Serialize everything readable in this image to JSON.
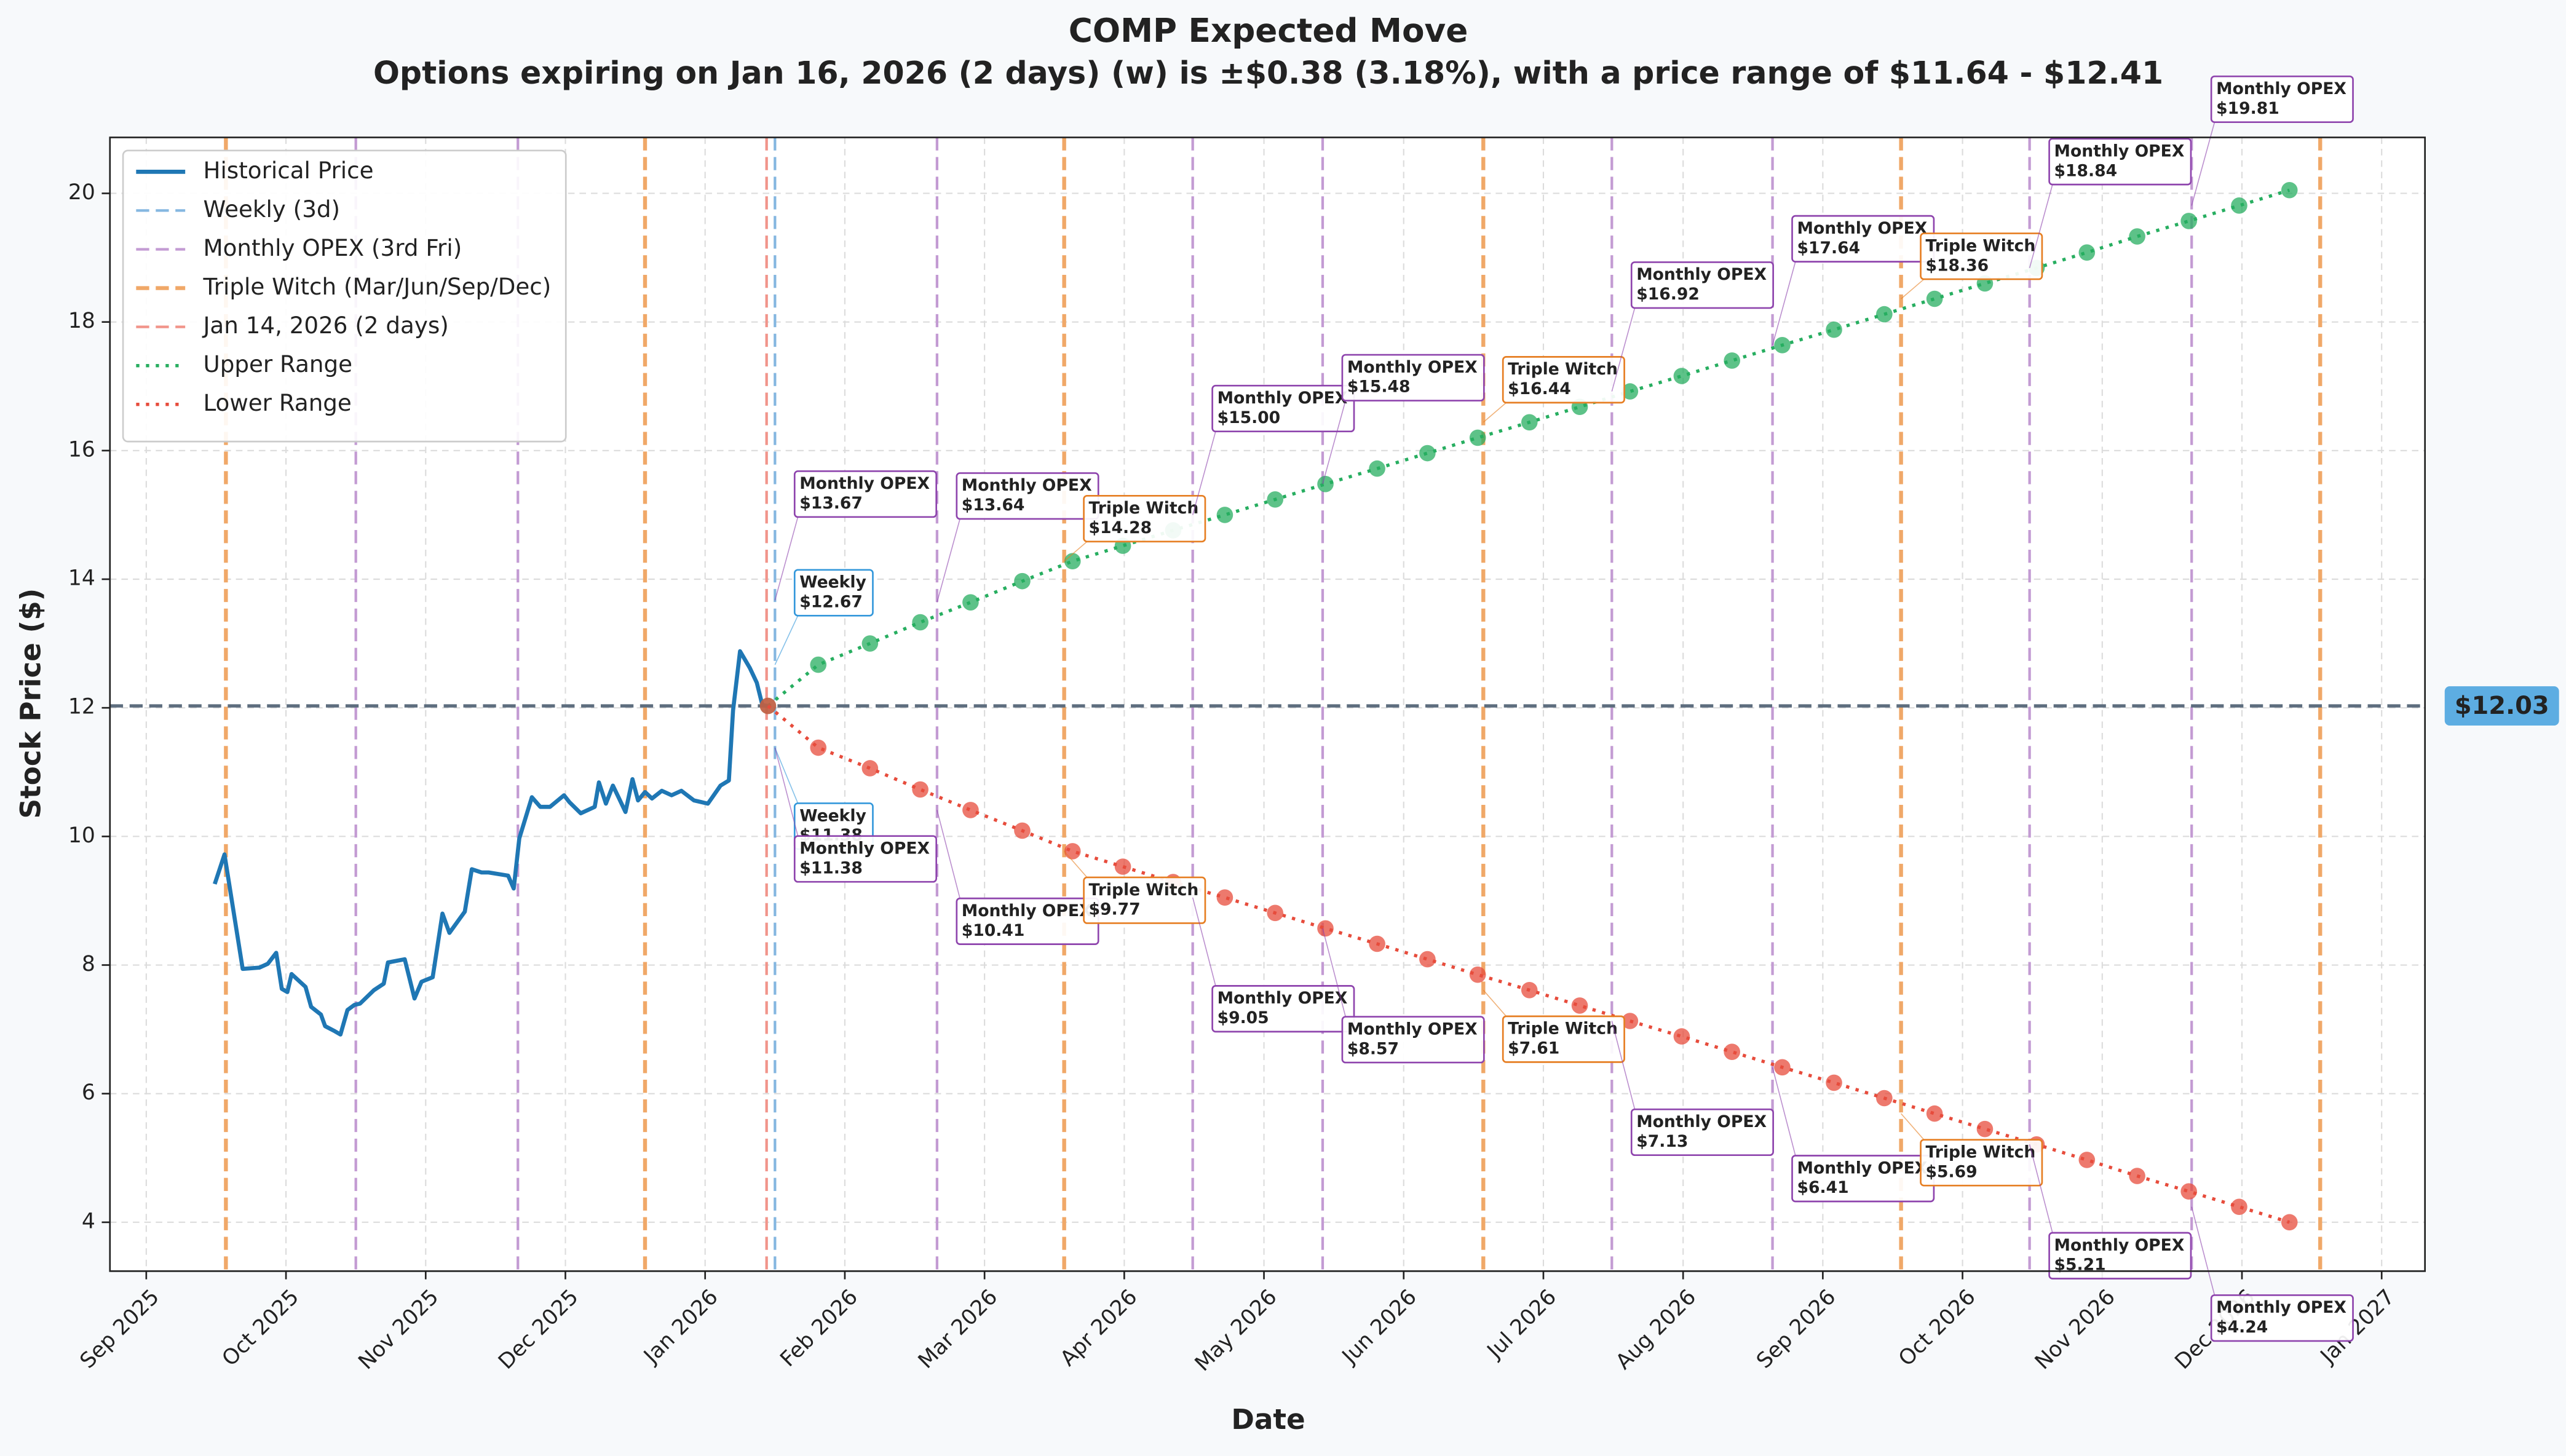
{
  "chart_data": {
    "type": "line",
    "title": "COMP Expected Move",
    "subtitle": "Options expiring on Jan 16, 2026 (2 days) (w) is ±$0.38 (3.18%), with a price range of $11.64 - $12.41",
    "x_label": "Date",
    "y_label": "Stock Price ($)",
    "xlim": [
      -0.26,
      16.31
    ],
    "xticks": [
      {
        "value": 0,
        "label": "Sep 2025"
      },
      {
        "value": 1,
        "label": "Oct 2025"
      },
      {
        "value": 2,
        "label": "Nov 2025"
      },
      {
        "value": 3,
        "label": "Dec 2025"
      },
      {
        "value": 4,
        "label": "Jan 2026"
      },
      {
        "value": 5,
        "label": "Feb 2026"
      },
      {
        "value": 6,
        "label": "Mar 2026"
      },
      {
        "value": 7,
        "label": "Apr 2026"
      },
      {
        "value": 8,
        "label": "May 2026"
      },
      {
        "value": 9,
        "label": "Jun 2026"
      },
      {
        "value": 10,
        "label": "Jul 2026"
      },
      {
        "value": 11,
        "label": "Aug 2026"
      },
      {
        "value": 12,
        "label": "Sep 2026"
      },
      {
        "value": 13,
        "label": "Oct 2026"
      },
      {
        "value": 14,
        "label": "Nov 2026"
      },
      {
        "value": 15,
        "label": "Dec 2026"
      },
      {
        "value": 16,
        "label": "Jan 2027"
      }
    ],
    "ylim": [
      3.24,
      20.87
    ],
    "yticks": [
      4,
      6,
      8,
      10,
      12,
      14,
      16,
      18,
      20
    ],
    "grid": true,
    "legend": "upper left",
    "series": [
      {
        "name": "Historical Price",
        "color": "#1f77b4",
        "style": "solid",
        "x": [
          0.49,
          0.56,
          0.69,
          0.81,
          0.87,
          0.93,
          0.97,
          1.01,
          1.04,
          1.14,
          1.18,
          1.25,
          1.28,
          1.35,
          1.39,
          1.44,
          1.49,
          1.53,
          1.63,
          1.7,
          1.73,
          1.85,
          1.92,
          1.97,
          2.05,
          2.12,
          2.17,
          2.28,
          2.33,
          2.4,
          2.45,
          2.59,
          2.63,
          2.67,
          2.76,
          2.82,
          2.89,
          2.99,
          3.03,
          3.11,
          3.21,
          3.24,
          3.29,
          3.34,
          3.38,
          3.43,
          3.48,
          3.52,
          3.57,
          3.62,
          3.69,
          3.76,
          3.83,
          3.92,
          4.02,
          4.11,
          4.17,
          4.2,
          4.25,
          4.32,
          4.37,
          4.41,
          4.45
        ],
        "values": [
          9.26,
          9.72,
          7.94,
          7.96,
          8.02,
          8.19,
          7.63,
          7.58,
          7.86,
          7.66,
          7.35,
          7.23,
          7.05,
          6.97,
          6.92,
          7.3,
          7.38,
          7.4,
          7.61,
          7.71,
          8.04,
          8.09,
          7.48,
          7.74,
          7.81,
          8.8,
          8.5,
          8.83,
          9.49,
          9.44,
          9.44,
          9.39,
          9.19,
          9.97,
          10.61,
          10.46,
          10.46,
          10.64,
          10.53,
          10.36,
          10.46,
          10.84,
          10.51,
          10.79,
          10.61,
          10.38,
          10.89,
          10.56,
          10.69,
          10.59,
          10.71,
          10.64,
          10.71,
          10.56,
          10.51,
          10.79,
          10.87,
          11.96,
          12.88,
          12.62,
          12.39,
          12.04,
          12.03
        ]
      },
      {
        "name": "Weekly (3d)",
        "color": "#85b7e0",
        "style": "vline",
        "x": [
          4.5
        ]
      },
      {
        "name": "Monthly OPEX (3rd Fri)",
        "color": "#c39bd3",
        "style": "vline",
        "x": [
          1.5,
          2.66,
          5.66,
          7.49,
          8.42,
          10.49,
          11.64,
          13.48,
          14.64
        ]
      },
      {
        "name": "Triple Witch (Mar/Jun/Sep/Dec)",
        "color": "#f0a868",
        "style": "vline-bold",
        "x": [
          0.57,
          3.57,
          6.57,
          9.57,
          12.56,
          15.56
        ]
      },
      {
        "name": "Jan 14, 2026 (2 days)",
        "color": "#f1948a",
        "style": "vline",
        "x": [
          4.44
        ]
      },
      {
        "name": "Upper Range",
        "color": "#27ae60",
        "style": "dotted",
        "x": [
          4.45,
          4.81,
          5.18,
          5.54,
          5.9,
          6.27,
          6.63,
          6.99,
          7.35,
          7.72,
          8.08,
          8.44,
          8.81,
          9.17,
          9.53,
          9.9,
          10.26,
          10.62,
          10.99,
          11.35,
          11.71,
          12.08,
          12.44,
          12.8,
          13.16,
          13.53,
          13.89,
          14.25,
          14.62,
          14.98,
          15.34
        ],
        "values": [
          12.03,
          12.67,
          13.0,
          13.33,
          13.64,
          13.97,
          14.28,
          14.52,
          14.76,
          15.0,
          15.24,
          15.48,
          15.72,
          15.96,
          16.2,
          16.44,
          16.68,
          16.92,
          17.16,
          17.4,
          17.64,
          17.88,
          18.12,
          18.36,
          18.6,
          18.84,
          19.08,
          19.33,
          19.57,
          19.81,
          20.05
        ]
      },
      {
        "name": "Lower Range",
        "color": "#e74c3c",
        "style": "dotted",
        "x": [
          4.45,
          4.81,
          5.18,
          5.54,
          5.9,
          6.27,
          6.63,
          6.99,
          7.35,
          7.72,
          8.08,
          8.44,
          8.81,
          9.17,
          9.53,
          9.9,
          10.26,
          10.62,
          10.99,
          11.35,
          11.71,
          12.08,
          12.44,
          12.8,
          13.16,
          13.53,
          13.89,
          14.25,
          14.62,
          14.98,
          15.34
        ],
        "values": [
          12.03,
          11.38,
          11.06,
          10.73,
          10.41,
          10.09,
          9.77,
          9.53,
          9.29,
          9.05,
          8.81,
          8.57,
          8.33,
          8.09,
          7.85,
          7.61,
          7.37,
          7.13,
          6.89,
          6.65,
          6.41,
          6.17,
          5.93,
          5.69,
          5.45,
          5.21,
          4.97,
          4.72,
          4.48,
          4.24,
          4.0
        ]
      }
    ],
    "current_price": {
      "value": 12.03,
      "label": "$12.03",
      "color": "#5d6d7e",
      "tag_color": "#5dade2"
    },
    "annotations": [
      {
        "text": "Weekly",
        "value": 12.67,
        "label": "$12.67",
        "x": 4.5,
        "side": "upper",
        "color": "#3498db"
      },
      {
        "text": "Monthly OPEX",
        "value": 13.67,
        "label": "$13.67",
        "x": 4.5,
        "side": "upper",
        "color": "#8e44ad"
      },
      {
        "text": "Monthly OPEX",
        "value": 13.64,
        "label": "$13.64",
        "x": 5.66,
        "side": "upper",
        "color": "#8e44ad"
      },
      {
        "text": "Triple Witch",
        "value": 14.28,
        "label": "$14.28",
        "x": 6.57,
        "side": "upper",
        "color": "#e67e22"
      },
      {
        "text": "Monthly OPEX",
        "value": 15.0,
        "label": "$15.00",
        "x": 7.49,
        "side": "upper",
        "color": "#8e44ad"
      },
      {
        "text": "Monthly OPEX",
        "value": 15.48,
        "label": "$15.48",
        "x": 8.42,
        "side": "upper",
        "color": "#8e44ad"
      },
      {
        "text": "Triple Witch",
        "value": 16.44,
        "label": "$16.44",
        "x": 9.57,
        "side": "upper",
        "color": "#e67e22"
      },
      {
        "text": "Monthly OPEX",
        "value": 16.92,
        "label": "$16.92",
        "x": 10.49,
        "side": "upper",
        "color": "#8e44ad"
      },
      {
        "text": "Monthly OPEX",
        "value": 17.64,
        "label": "$17.64",
        "x": 11.64,
        "side": "upper",
        "color": "#8e44ad"
      },
      {
        "text": "Triple Witch",
        "value": 18.36,
        "label": "$18.36",
        "x": 12.56,
        "side": "upper",
        "color": "#e67e22"
      },
      {
        "text": "Monthly OPEX",
        "value": 18.84,
        "label": "$18.84",
        "x": 13.48,
        "side": "upper",
        "color": "#8e44ad"
      },
      {
        "text": "Monthly OPEX",
        "value": 19.81,
        "label": "$19.81",
        "x": 14.64,
        "side": "upper",
        "color": "#8e44ad"
      },
      {
        "text": "Weekly",
        "value": 11.38,
        "label": "$11.38",
        "x": 4.5,
        "side": "lower",
        "color": "#3498db"
      },
      {
        "text": "Monthly OPEX",
        "value": 11.38,
        "label": "$11.38",
        "x": 4.5,
        "side": "lower",
        "color": "#8e44ad"
      },
      {
        "text": "Monthly OPEX",
        "value": 10.41,
        "label": "$10.41",
        "x": 5.66,
        "side": "lower",
        "color": "#8e44ad"
      },
      {
        "text": "Triple Witch",
        "value": 9.77,
        "label": "$9.77",
        "x": 6.57,
        "side": "lower",
        "color": "#e67e22"
      },
      {
        "text": "Monthly OPEX",
        "value": 9.05,
        "label": "$9.05",
        "x": 7.49,
        "side": "lower",
        "color": "#8e44ad"
      },
      {
        "text": "Monthly OPEX",
        "value": 8.57,
        "label": "$8.57",
        "x": 8.42,
        "side": "lower",
        "color": "#8e44ad"
      },
      {
        "text": "Triple Witch",
        "value": 7.61,
        "label": "$7.61",
        "x": 9.57,
        "side": "lower",
        "color": "#e67e22"
      },
      {
        "text": "Monthly OPEX",
        "value": 7.13,
        "label": "$7.13",
        "x": 10.49,
        "side": "lower",
        "color": "#8e44ad"
      },
      {
        "text": "Monthly OPEX",
        "value": 6.41,
        "label": "$6.41",
        "x": 11.64,
        "side": "lower",
        "color": "#8e44ad"
      },
      {
        "text": "Triple Witch",
        "value": 5.69,
        "label": "$5.69",
        "x": 12.56,
        "side": "lower",
        "color": "#e67e22"
      },
      {
        "text": "Monthly OPEX",
        "value": 5.21,
        "label": "$5.21",
        "x": 13.48,
        "side": "lower",
        "color": "#8e44ad"
      },
      {
        "text": "Monthly OPEX",
        "value": 4.24,
        "label": "$4.24",
        "x": 14.64,
        "side": "lower",
        "color": "#8e44ad"
      }
    ]
  }
}
